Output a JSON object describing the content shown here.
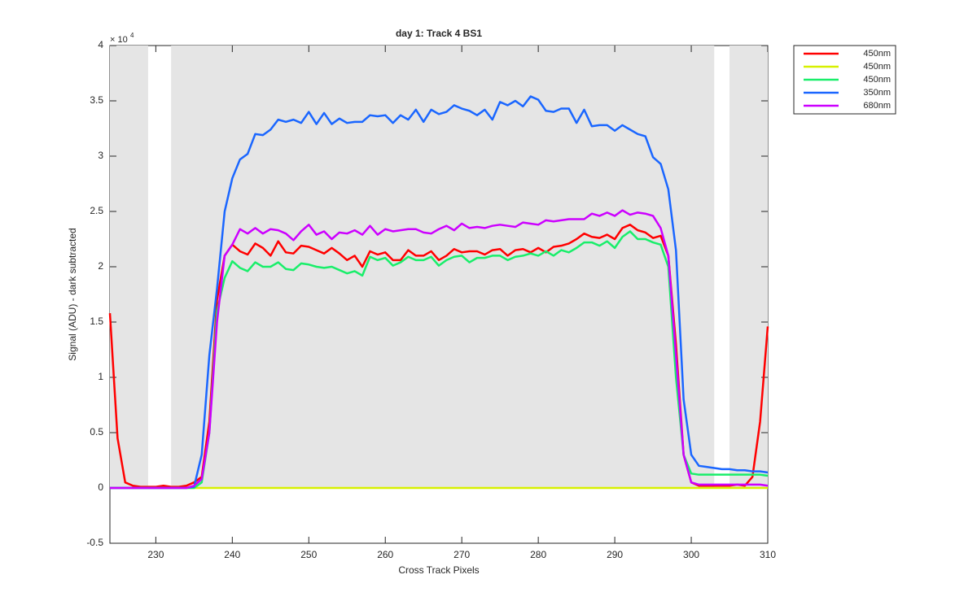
{
  "chart_data": {
    "type": "line",
    "title": "day 1: Track 4  BS1",
    "xlabel": "Cross Track Pixels",
    "ylabel": "Signal (ADU) - dark subtracted",
    "y_multiplier": "× 10",
    "y_multiplier_exponent": "4",
    "x": [
      224,
      225,
      226,
      227,
      228,
      229,
      230,
      231,
      232,
      233,
      234,
      235,
      236,
      237,
      238,
      239,
      240,
      241,
      242,
      243,
      244,
      245,
      246,
      247,
      248,
      249,
      250,
      251,
      252,
      253,
      254,
      255,
      256,
      257,
      258,
      259,
      260,
      261,
      262,
      263,
      264,
      265,
      266,
      267,
      268,
      269,
      270,
      271,
      272,
      273,
      274,
      275,
      276,
      277,
      278,
      279,
      280,
      281,
      282,
      283,
      284,
      285,
      286,
      287,
      288,
      289,
      290,
      291,
      292,
      293,
      294,
      295,
      296,
      297,
      298,
      299,
      300,
      301,
      302,
      303,
      304,
      305,
      306,
      307,
      308,
      309,
      310
    ],
    "series": [
      {
        "name": "450nm",
        "color": "#ff0000",
        "values": [
          1.58,
          0.45,
          0.05,
          0.02,
          0.01,
          0.01,
          0.01,
          0.02,
          0.01,
          0.01,
          0.02,
          0.05,
          0.1,
          0.6,
          1.7,
          2.1,
          2.2,
          2.14,
          2.11,
          2.21,
          2.17,
          2.1,
          2.23,
          2.13,
          2.12,
          2.19,
          2.18,
          2.15,
          2.12,
          2.17,
          2.12,
          2.06,
          2.1,
          2.0,
          2.14,
          2.11,
          2.13,
          2.06,
          2.06,
          2.15,
          2.1,
          2.1,
          2.14,
          2.06,
          2.1,
          2.16,
          2.13,
          2.14,
          2.14,
          2.11,
          2.15,
          2.16,
          2.1,
          2.15,
          2.16,
          2.13,
          2.17,
          2.13,
          2.18,
          2.19,
          2.21,
          2.25,
          2.3,
          2.27,
          2.26,
          2.29,
          2.25,
          2.35,
          2.38,
          2.33,
          2.31,
          2.26,
          2.28,
          2.1,
          1.3,
          0.3,
          0.05,
          0.02,
          0.02,
          0.02,
          0.02,
          0.02,
          0.03,
          0.02,
          0.1,
          0.6,
          1.46
        ]
      },
      {
        "name": "450nm",
        "color": "#d7f000",
        "values": [
          0,
          0,
          0,
          0,
          0,
          0,
          0,
          0,
          0,
          0,
          0,
          0,
          0,
          0,
          0,
          0,
          0,
          0,
          0,
          0,
          0,
          0,
          0,
          0,
          0,
          0,
          0,
          0,
          0,
          0,
          0,
          0,
          0,
          0,
          0,
          0,
          0,
          0,
          0,
          0,
          0,
          0,
          0,
          0,
          0,
          0,
          0,
          0,
          0,
          0,
          0,
          0,
          0,
          0,
          0,
          0,
          0,
          0,
          0,
          0,
          0,
          0,
          0,
          0,
          0,
          0,
          0,
          0,
          0,
          0,
          0,
          0,
          0,
          0,
          0,
          0,
          0,
          0,
          0,
          0,
          0,
          0,
          0,
          0,
          0,
          0,
          0
        ]
      },
      {
        "name": "450nm",
        "color": "#19ee6a",
        "values": [
          0,
          0,
          0,
          0,
          0,
          0,
          0,
          0,
          0,
          0,
          0,
          0,
          0.05,
          0.5,
          1.6,
          1.9,
          2.05,
          1.99,
          1.96,
          2.04,
          2.0,
          2.0,
          2.04,
          1.98,
          1.97,
          2.03,
          2.02,
          2.0,
          1.99,
          2.0,
          1.97,
          1.94,
          1.96,
          1.92,
          2.09,
          2.06,
          2.08,
          2.01,
          2.04,
          2.09,
          2.06,
          2.06,
          2.09,
          2.01,
          2.06,
          2.09,
          2.1,
          2.04,
          2.08,
          2.08,
          2.1,
          2.1,
          2.06,
          2.09,
          2.1,
          2.12,
          2.1,
          2.14,
          2.1,
          2.15,
          2.13,
          2.17,
          2.22,
          2.22,
          2.19,
          2.23,
          2.17,
          2.27,
          2.32,
          2.25,
          2.25,
          2.22,
          2.2,
          2.0,
          1.0,
          0.3,
          0.13,
          0.12,
          0.12,
          0.12,
          0.12,
          0.12,
          0.12,
          0.12,
          0.12,
          0.12,
          0.11
        ]
      },
      {
        "name": "350nm",
        "color": "#1a66ff",
        "values": [
          0,
          0,
          0,
          0,
          0,
          0,
          0,
          0,
          0,
          0,
          0,
          0.01,
          0.3,
          1.2,
          1.8,
          2.5,
          2.8,
          2.97,
          3.02,
          3.2,
          3.19,
          3.24,
          3.33,
          3.31,
          3.33,
          3.3,
          3.4,
          3.29,
          3.39,
          3.29,
          3.34,
          3.3,
          3.31,
          3.31,
          3.37,
          3.36,
          3.37,
          3.3,
          3.37,
          3.33,
          3.42,
          3.31,
          3.42,
          3.38,
          3.4,
          3.46,
          3.43,
          3.41,
          3.37,
          3.42,
          3.33,
          3.49,
          3.46,
          3.5,
          3.45,
          3.54,
          3.51,
          3.41,
          3.4,
          3.43,
          3.43,
          3.3,
          3.42,
          3.27,
          3.28,
          3.28,
          3.23,
          3.28,
          3.24,
          3.2,
          3.18,
          2.99,
          2.93,
          2.7,
          2.15,
          0.8,
          0.3,
          0.2,
          0.19,
          0.18,
          0.17,
          0.17,
          0.16,
          0.16,
          0.15,
          0.15,
          0.14
        ]
      },
      {
        "name": "680nm",
        "color": "#cc00ff",
        "values": [
          0,
          0,
          0,
          0,
          0,
          0,
          0,
          0,
          0,
          0,
          0,
          0.02,
          0.08,
          0.5,
          1.5,
          2.1,
          2.2,
          2.34,
          2.3,
          2.35,
          2.3,
          2.34,
          2.33,
          2.3,
          2.24,
          2.32,
          2.38,
          2.29,
          2.32,
          2.25,
          2.31,
          2.3,
          2.33,
          2.29,
          2.37,
          2.29,
          2.34,
          2.32,
          2.33,
          2.34,
          2.34,
          2.31,
          2.3,
          2.34,
          2.37,
          2.33,
          2.39,
          2.35,
          2.36,
          2.35,
          2.37,
          2.38,
          2.37,
          2.36,
          2.4,
          2.39,
          2.38,
          2.42,
          2.41,
          2.42,
          2.43,
          2.43,
          2.43,
          2.48,
          2.46,
          2.49,
          2.46,
          2.51,
          2.47,
          2.49,
          2.48,
          2.46,
          2.35,
          2.1,
          1.2,
          0.3,
          0.05,
          0.03,
          0.03,
          0.03,
          0.03,
          0.03,
          0.03,
          0.03,
          0.03,
          0.03,
          0.02
        ]
      }
    ],
    "shaded_regions": [
      [
        224,
        229
      ],
      [
        232,
        303
      ],
      [
        305,
        310
      ]
    ],
    "shade_ylim": [
      0,
      4
    ],
    "shade_color": "#e5e5e5",
    "xlim": [
      224,
      310
    ],
    "xticks": [
      230,
      240,
      250,
      260,
      270,
      280,
      290,
      300,
      310
    ],
    "ylim": [
      -0.5,
      4
    ],
    "yticks": [
      -0.5,
      0,
      0.5,
      1,
      1.5,
      2,
      2.5,
      3,
      3.5,
      4
    ],
    "legend": "outside-top-right"
  }
}
